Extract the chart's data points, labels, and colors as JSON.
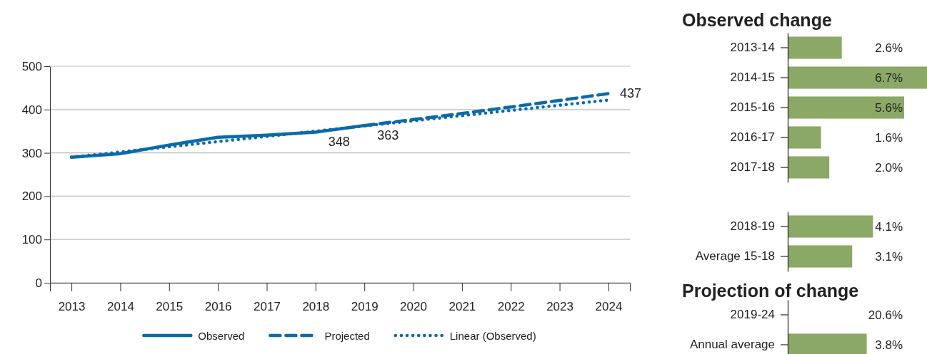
{
  "chart_data": [
    {
      "type": "line",
      "categories": [
        "2013",
        "2014",
        "2015",
        "2016",
        "2017",
        "2018",
        "2019",
        "2020",
        "2021",
        "2022",
        "2023",
        "2024"
      ],
      "series": [
        {
          "name": "Observed",
          "color": "#0a6aab",
          "line_style": "solid",
          "values": [
            290,
            298,
            318,
            336,
            341,
            348,
            363,
            null,
            null,
            null,
            null,
            null
          ],
          "value_labels": [
            null,
            null,
            null,
            null,
            null,
            "348",
            "363",
            null,
            null,
            null,
            null,
            null
          ]
        },
        {
          "name": "Projected",
          "color": "#0a6aab",
          "line_style": "dashed",
          "values": [
            null,
            null,
            null,
            null,
            null,
            null,
            363,
            377,
            391,
            406,
            421,
            437
          ],
          "value_labels": [
            null,
            null,
            null,
            null,
            null,
            null,
            null,
            null,
            null,
            null,
            null,
            "437"
          ]
        },
        {
          "name": "Linear (Observed)",
          "color": "#0a6aab",
          "line_style": "dotted",
          "values": [
            290,
            302,
            314,
            326,
            338,
            350,
            362,
            374,
            386,
            398,
            410,
            422
          ]
        }
      ],
      "ylim": [
        0,
        500
      ],
      "yticks": [
        0,
        100,
        200,
        300,
        400,
        500
      ],
      "grid": "y",
      "legend": "bottom"
    },
    {
      "type": "bar",
      "orientation": "horizontal",
      "title": "Observed change",
      "categories": [
        "2013-14",
        "2014-15",
        "2015-16",
        "2016-17",
        "2017-18"
      ],
      "values": [
        2.6,
        6.7,
        5.6,
        1.6,
        2.0
      ],
      "value_labels": [
        "2.6%",
        "6.7%",
        "5.6%",
        "1.6%",
        "2.0%"
      ],
      "color": "#8ba866",
      "tick_labels": "y"
    },
    {
      "type": "bar",
      "orientation": "horizontal",
      "categories": [
        "2018-19",
        "Average 15-18"
      ],
      "values": [
        4.1,
        3.1
      ],
      "value_labels": [
        "4.1%",
        "3.1%"
      ],
      "color": "#8ba866",
      "tick_labels": "y"
    },
    {
      "type": "bar",
      "orientation": "horizontal",
      "title": "Projection of change",
      "categories": [
        "2019-24",
        "Annual average"
      ],
      "values": [
        null,
        3.8
      ],
      "value_labels": [
        "20.6%",
        "3.8%"
      ],
      "color": "#8ba866",
      "tick_labels": "y"
    }
  ]
}
